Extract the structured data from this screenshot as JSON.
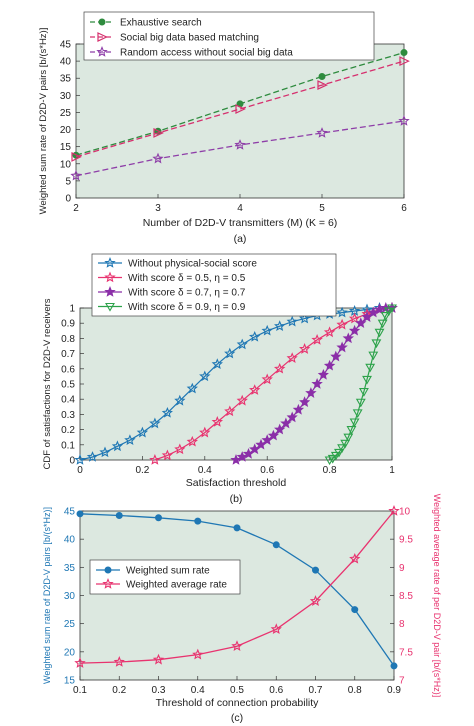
{
  "chart_data": [
    {
      "type": "line",
      "caption": "(a)",
      "xlabel": "Number of D2D-V transmitters (M) (K = 6)",
      "ylabel": "Weighted sum rate of D2D-V pairs [b/(s*Hz)]",
      "xlim": [
        2,
        6
      ],
      "ylim": [
        0,
        45
      ],
      "xticks": [
        2,
        3,
        4,
        5,
        6
      ],
      "yticks": [
        0,
        5,
        10,
        15,
        20,
        25,
        30,
        35,
        40,
        45
      ],
      "grid": false,
      "legend_position": "top-left",
      "x": [
        2,
        3,
        4,
        5,
        6
      ],
      "series": [
        {
          "name": "Exhaustive search",
          "color": "#2e8b3e",
          "marker": "circle",
          "values": [
            12.5,
            19.5,
            27.5,
            35.5,
            42.5
          ]
        },
        {
          "name": "Social big data based matching",
          "color": "#d6306e",
          "marker": "triangle-right",
          "values": [
            12,
            19,
            26,
            33,
            40
          ]
        },
        {
          "name": "Random access without social big data",
          "color": "#8e3ea8",
          "marker": "star",
          "values": [
            6.5,
            11.5,
            15.5,
            19,
            22.5
          ]
        }
      ]
    },
    {
      "type": "line",
      "caption": "(b)",
      "xlabel": "Satisfaction threshold",
      "ylabel": "CDF of satisfactions for D2D-V receivers",
      "xlim": [
        0,
        1
      ],
      "ylim": [
        0,
        1
      ],
      "xticks": [
        0,
        0.2,
        0.4,
        0.6,
        0.8,
        1
      ],
      "yticks": [
        0,
        0.1,
        0.2,
        0.3,
        0.4,
        0.5,
        0.6,
        0.7,
        0.8,
        0.9,
        1
      ],
      "xtick_labels": [
        "0",
        "0.2",
        "0.4",
        "0.6",
        "0.8",
        "1"
      ],
      "ytick_labels": [
        "0",
        "0.1",
        "0.2",
        "0.3",
        "0.4",
        "0.5",
        "0.6",
        "0.7",
        "0.8",
        "0.9",
        "1"
      ],
      "grid": false,
      "legend_position": "top-left",
      "series": [
        {
          "name": "Without physical-social score",
          "color": "#1f77b4",
          "marker": "star",
          "x": [
            0,
            0.04,
            0.08,
            0.12,
            0.16,
            0.2,
            0.24,
            0.28,
            0.32,
            0.36,
            0.4,
            0.44,
            0.48,
            0.52,
            0.56,
            0.6,
            0.64,
            0.68,
            0.72,
            0.76,
            0.8,
            0.84,
            0.88,
            0.92,
            0.96,
            1
          ],
          "y": [
            0,
            0.02,
            0.05,
            0.09,
            0.13,
            0.18,
            0.24,
            0.31,
            0.39,
            0.47,
            0.55,
            0.63,
            0.7,
            0.76,
            0.81,
            0.85,
            0.88,
            0.91,
            0.93,
            0.95,
            0.96,
            0.97,
            0.98,
            0.99,
            1,
            1
          ]
        },
        {
          "name": "With score δ = 0.5, η = 0.5",
          "color": "#e8336f",
          "marker": "star",
          "x": [
            0.24,
            0.28,
            0.32,
            0.36,
            0.4,
            0.44,
            0.48,
            0.52,
            0.56,
            0.6,
            0.64,
            0.68,
            0.72,
            0.76,
            0.8,
            0.84,
            0.88,
            0.92,
            0.96,
            1
          ],
          "y": [
            0,
            0.03,
            0.07,
            0.12,
            0.18,
            0.25,
            0.32,
            0.39,
            0.46,
            0.53,
            0.6,
            0.67,
            0.73,
            0.79,
            0.84,
            0.89,
            0.93,
            0.96,
            0.99,
            1
          ]
        },
        {
          "name": "With score δ = 0.7, η = 0.7",
          "color": "#8b2fa8",
          "marker": "star",
          "x": [
            0.5,
            0.52,
            0.54,
            0.56,
            0.58,
            0.6,
            0.62,
            0.64,
            0.66,
            0.68,
            0.7,
            0.72,
            0.74,
            0.76,
            0.78,
            0.8,
            0.82,
            0.84,
            0.86,
            0.88,
            0.9,
            0.92,
            0.94,
            0.96,
            0.98,
            1
          ],
          "y": [
            0,
            0.02,
            0.04,
            0.07,
            0.1,
            0.13,
            0.16,
            0.2,
            0.24,
            0.28,
            0.33,
            0.38,
            0.44,
            0.5,
            0.56,
            0.62,
            0.68,
            0.74,
            0.8,
            0.85,
            0.9,
            0.94,
            0.97,
            0.99,
            1,
            1
          ]
        },
        {
          "name": "With score δ = 0.9, η = 0.9",
          "color": "#2ca24a",
          "marker": "triangle-down",
          "x": [
            0.8,
            0.81,
            0.82,
            0.83,
            0.84,
            0.85,
            0.86,
            0.87,
            0.88,
            0.89,
            0.9,
            0.91,
            0.92,
            0.93,
            0.94,
            0.95,
            0.96,
            0.97,
            0.98,
            0.99,
            1
          ],
          "y": [
            0,
            0.01,
            0.03,
            0.05,
            0.08,
            0.11,
            0.15,
            0.2,
            0.25,
            0.31,
            0.38,
            0.45,
            0.53,
            0.61,
            0.69,
            0.77,
            0.84,
            0.9,
            0.95,
            0.98,
            1
          ]
        }
      ]
    },
    {
      "type": "line",
      "caption": "(c)",
      "xlabel": "Threshold of connection probability",
      "ylabel_left": "Weighted sum rate of D2D-V pairs [b/(s*Hz)]",
      "ylabel_right": "Weighted average rate of per D2D-V pair [b/(s*Hz)]",
      "xlim": [
        0.1,
        0.9
      ],
      "ylim_left": [
        15,
        45
      ],
      "ylim_right": [
        7,
        10
      ],
      "xticks": [
        0.1,
        0.2,
        0.3,
        0.4,
        0.5,
        0.6,
        0.7,
        0.8,
        0.9
      ],
      "xtick_labels": [
        "0.1",
        "0.2",
        "0.3",
        "0.4",
        "0.5",
        "0.6",
        "0.7",
        "0.8",
        "0.9"
      ],
      "yticks_left": [
        15,
        20,
        25,
        30,
        35,
        40,
        45
      ],
      "yticks_right": [
        7,
        7.5,
        8,
        8.5,
        9,
        9.5,
        10
      ],
      "ytick_labels_right": [
        "7",
        "7.5",
        "8",
        "8.5",
        "9",
        "9.5",
        "10"
      ],
      "grid": false,
      "legend_position": "center-left",
      "x": [
        0.1,
        0.2,
        0.3,
        0.4,
        0.5,
        0.6,
        0.7,
        0.8,
        0.9
      ],
      "series": [
        {
          "name": "Weighted sum rate",
          "axis": "left",
          "color": "#1f77b4",
          "marker": "circle",
          "values": [
            44.5,
            44.2,
            43.8,
            43.2,
            42,
            39,
            34.5,
            27.5,
            17.5
          ]
        },
        {
          "name": "Weighted average rate",
          "axis": "right",
          "color": "#e8336f",
          "marker": "star",
          "values": [
            7.3,
            7.32,
            7.36,
            7.45,
            7.6,
            7.9,
            8.4,
            9.15,
            10
          ]
        }
      ]
    }
  ]
}
